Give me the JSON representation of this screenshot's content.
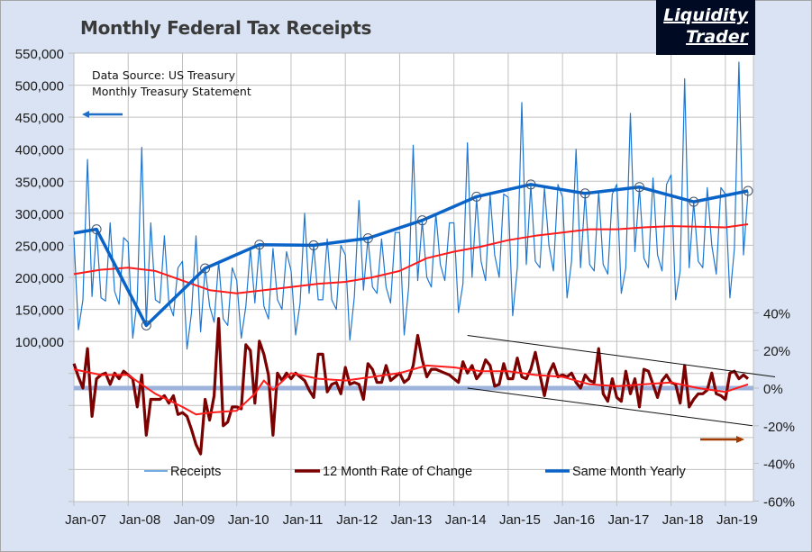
{
  "chart_data": {
    "type": "line",
    "title": "Monthly Federal Tax Receipts",
    "annotation_source": [
      "Data Source: US Treasury",
      "Monthly Treasury Statement"
    ],
    "logo": "Liquidity Trader",
    "x_range": [
      "2007-01",
      "2019-06"
    ],
    "x_tick_labels": [
      "Jan-07",
      "Jan-08",
      "Jan-09",
      "Jan-10",
      "Jan-11",
      "Jan-12",
      "Jan-13",
      "Jan-14",
      "Jan-15",
      "Jan-16",
      "Jan-17",
      "Jan-18",
      "Jan-19"
    ],
    "y_left": {
      "range": [
        -150000,
        550000
      ],
      "tick_labels": [
        "550,000",
        "500,000",
        "450,000",
        "400,000",
        "350,000",
        "300,000",
        "250,000",
        "200,000",
        "150,000",
        "100,000"
      ]
    },
    "y_right": {
      "tick_labels": [
        "40%",
        "20%",
        "0%",
        "-20%",
        "-40%",
        "-60%"
      ]
    },
    "grid": true,
    "legend_position": "bottom",
    "colors": {
      "receipts": "#1f77d0",
      "rate": "#7b0000",
      "yearly": "#0a64c8",
      "avg": "#ff1a1a",
      "zero_band": "#9db3dc",
      "left_arrow": "#1f6fc8",
      "right_arrow": "#a33a00"
    },
    "series": [
      {
        "name": "Receipts",
        "axis": "left",
        "monthly_values": [
          262000,
          118000,
          165000,
          384000,
          170000,
          275000,
          168000,
          163000,
          285000,
          178000,
          158000,
          262000,
          255000,
          105000,
          165000,
          403000,
          125000,
          285000,
          165000,
          160000,
          265000,
          160000,
          140000,
          215000,
          225000,
          88000,
          145000,
          265000,
          115000,
          215000,
          155000,
          130000,
          225000,
          135000,
          125000,
          215000,
          195000,
          105000,
          155000,
          245000,
          160000,
          250000,
          155000,
          135000,
          245000,
          165000,
          150000,
          240000,
          210000,
          110000,
          160000,
          300000,
          175000,
          250000,
          165000,
          165000,
          260000,
          165000,
          150000,
          250000,
          235000,
          102000,
          170000,
          320000,
          180000,
          261000,
          185000,
          175000,
          260000,
          185000,
          160000,
          270000,
          270000,
          110000,
          185000,
          406000,
          195000,
          288000,
          200000,
          185000,
          300000,
          220000,
          195000,
          285000,
          285000,
          145000,
          190000,
          410000,
          200000,
          323000,
          225000,
          195000,
          330000,
          235000,
          200000,
          330000,
          325000,
          140000,
          215000,
          473000,
          220000,
          344000,
          225000,
          215000,
          340000,
          250000,
          210000,
          345000,
          325000,
          168000,
          225000,
          400000,
          215000,
          330000,
          220000,
          210000,
          335000,
          220000,
          205000,
          330000,
          345000,
          175000,
          215000,
          456000,
          240000,
          340000,
          230000,
          215000,
          355000,
          235000,
          210000,
          345000,
          360000,
          165000,
          210000,
          510000,
          215000,
          317000,
          225000,
          215000,
          340000,
          250000,
          205000,
          340000,
          330000,
          168000,
          245000,
          536000,
          235000,
          334000
        ]
      },
      {
        "name": "12 Month Rate of Change",
        "axis": "right",
        "unit": "%",
        "monthly_values": [
          13,
          6,
          0,
          21,
          -15,
          5,
          7,
          8,
          2,
          8,
          5,
          9,
          7,
          5,
          -10,
          7,
          -25,
          -6,
          -6,
          -6,
          -4,
          -8,
          -4,
          -14,
          -13,
          -15,
          -22,
          -30,
          -35,
          -6,
          -17,
          -4,
          37,
          -20,
          -18,
          -10,
          -10,
          -11,
          23,
          20,
          -8,
          25,
          18,
          7,
          -25,
          8,
          4,
          8,
          5,
          8,
          6,
          4,
          -1,
          -5,
          18,
          18,
          -2,
          2,
          3,
          -3,
          11,
          2,
          3,
          2,
          -6,
          13,
          10,
          3,
          3,
          12,
          4,
          6,
          8,
          3,
          5,
          12,
          28,
          15,
          6,
          10,
          10,
          9,
          8,
          7,
          5,
          3,
          14,
          8,
          12,
          5,
          8,
          15,
          12,
          1,
          2,
          13,
          5,
          5,
          16,
          6,
          5,
          10,
          19,
          7,
          -4,
          8,
          13,
          6,
          7,
          6,
          8,
          3,
          0,
          7,
          4,
          3,
          21,
          -3,
          -7,
          5,
          -5,
          -7,
          9,
          -3,
          5,
          -10,
          10,
          9,
          2,
          -5,
          4,
          7,
          3,
          2,
          -8,
          12,
          -10,
          -6,
          -3,
          -3,
          -1,
          8,
          -3,
          -4,
          -6,
          8,
          9,
          5,
          7,
          5
        ]
      },
      {
        "name": "Same Month Yearly",
        "axis": "left",
        "points": [
          [
            "2007-01",
            269000
          ],
          [
            "2007-06",
            275000
          ],
          [
            "2008-05",
            125000
          ],
          [
            "2009-06",
            214000
          ],
          [
            "2010-06",
            251000
          ],
          [
            "2011-06",
            250000
          ],
          [
            "2012-06",
            261000
          ],
          [
            "2013-06",
            289000
          ],
          [
            "2014-06",
            326000
          ],
          [
            "2015-06",
            345000
          ],
          [
            "2016-06",
            331000
          ],
          [
            "2017-06",
            341000
          ],
          [
            "2018-06",
            318000
          ],
          [
            "2019-06",
            335000
          ]
        ]
      },
      {
        "axis": "left",
        "style": "moving-average",
        "points": [
          [
            "2007-01",
            205000
          ],
          [
            "2007-07",
            212000
          ],
          [
            "2008-01",
            215000
          ],
          [
            "2008-07",
            210000
          ],
          [
            "2009-01",
            195000
          ],
          [
            "2009-07",
            180000
          ],
          [
            "2010-01",
            175000
          ],
          [
            "2010-07",
            180000
          ],
          [
            "2011-01",
            185000
          ],
          [
            "2011-07",
            190000
          ],
          [
            "2012-01",
            193000
          ],
          [
            "2012-07",
            200000
          ],
          [
            "2013-01",
            210000
          ],
          [
            "2013-07",
            230000
          ],
          [
            "2014-01",
            240000
          ],
          [
            "2014-07",
            248000
          ],
          [
            "2015-01",
            258000
          ],
          [
            "2015-07",
            265000
          ],
          [
            "2016-01",
            270000
          ],
          [
            "2016-07",
            275000
          ],
          [
            "2017-01",
            275000
          ],
          [
            "2017-07",
            278000
          ],
          [
            "2018-01",
            280000
          ],
          [
            "2018-07",
            279000
          ],
          [
            "2019-01",
            278000
          ],
          [
            "2019-06",
            283000
          ]
        ]
      },
      {
        "axis": "right",
        "style": "moving-average",
        "points": [
          [
            "2007-01",
            10
          ],
          [
            "2007-07",
            7
          ],
          [
            "2008-01",
            7
          ],
          [
            "2008-07",
            -3
          ],
          [
            "2009-01",
            -10
          ],
          [
            "2009-04",
            -14
          ],
          [
            "2009-07",
            -13
          ],
          [
            "2010-01",
            -12
          ],
          [
            "2010-05",
            -3
          ],
          [
            "2010-07",
            4
          ],
          [
            "2010-09",
            -1
          ],
          [
            "2011-01",
            8
          ],
          [
            "2011-07",
            5
          ],
          [
            "2012-01",
            4
          ],
          [
            "2012-07",
            6
          ],
          [
            "2013-01",
            8
          ],
          [
            "2013-07",
            12
          ],
          [
            "2014-01",
            11
          ],
          [
            "2014-07",
            9
          ],
          [
            "2015-01",
            9
          ],
          [
            "2015-07",
            7
          ],
          [
            "2016-01",
            6
          ],
          [
            "2016-07",
            2
          ],
          [
            "2017-01",
            1
          ],
          [
            "2017-07",
            2
          ],
          [
            "2018-01",
            3
          ],
          [
            "2018-07",
            0
          ],
          [
            "2019-01",
            -2
          ],
          [
            "2019-06",
            2
          ]
        ]
      }
    ],
    "trend_channel": [
      {
        "from": [
          "2014-04",
          28
        ],
        "to": [
          "2019-12",
          6
        ]
      },
      {
        "from": [
          "2014-04",
          0
        ],
        "to": [
          "2019-07",
          -20
        ]
      }
    ]
  }
}
